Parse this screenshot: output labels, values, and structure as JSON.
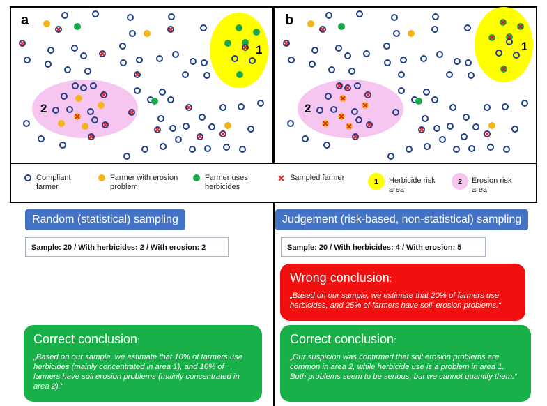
{
  "panels": {
    "a": {
      "label": "a",
      "area1": "1",
      "area2": "2"
    },
    "b": {
      "label": "b",
      "area1": "1",
      "area2": "2"
    }
  },
  "legend": {
    "compliant": "Compliant farmer",
    "erosion": "Farmer with erosion problem",
    "herbicides": "Farmer uses herbicides",
    "sampled": "Sampled farmer",
    "herbicide_area_badge": "1",
    "herbicide_area": "Herbicide risk area",
    "erosion_area_badge": "2",
    "erosion_area": "Erosion risk area"
  },
  "left": {
    "method": "Random (statistical) sampling",
    "sample": "Sample: 20  /  With herbicides: 2  /  With erosion: 2",
    "correct_title": "Correct conclusion",
    "correct_colon": ":",
    "correct_text": "„Based on our sample, we estimate that 10% of farmers use herbicides (mainly concentrated in area 1), and 10% of farmers have soil erosion problems (mainly concentrated in area 2).“"
  },
  "right": {
    "method": "Judgement  (risk-based, non-statistical) sampling",
    "sample": "Sample: 20  /  With herbicides: 4  /  With erosion: 5",
    "wrong_title": "Wrong conclusion",
    "wrong_colon": ":",
    "wrong_text": "„Based on our sample, we estimate that 20% of farmers use herbicides, and 25% of farmers have soil' erosion problems.“",
    "correct_title": "Correct conclusion",
    "correct_colon": ":",
    "correct_text": "„Our suspicion was confirmed that soil erosion problems are common in area 2, while herbicide use is a problem in area 1. Both problems seem to be serious, but we cannot quantify them.“"
  },
  "colors": {
    "compliant": "#1f3f8a",
    "erosion": "#f5b41a",
    "herbicides": "#1aa84a",
    "sampled": "#e01f1f",
    "herbicide_area": "#ffff00",
    "erosion_area": "#f6c6f0",
    "method_button": "#4472c4",
    "correct": "#19b04a",
    "wrong": "#f20f0f"
  }
}
